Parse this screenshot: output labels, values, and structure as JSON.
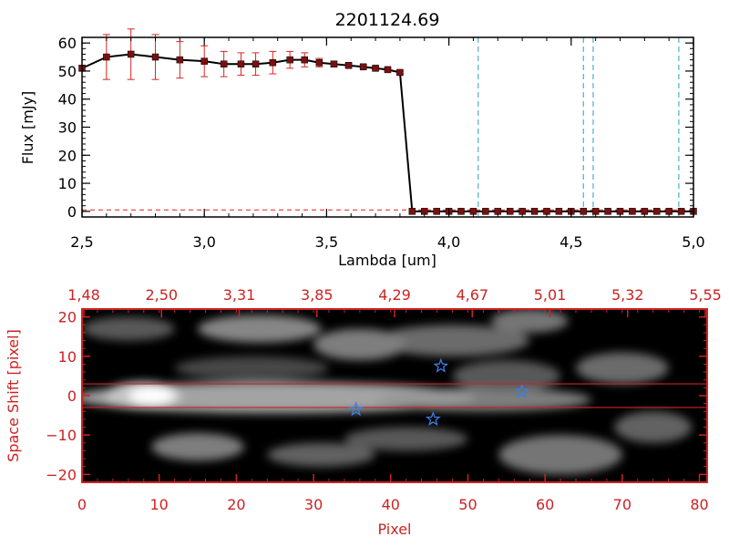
{
  "colors": {
    "axis_black": "#000000",
    "axis_red": "#cc2222",
    "error_bar": "#dd2222",
    "marker": "#7a1010",
    "dashed_line": "#2aa0b8",
    "star": "#3a7fe0",
    "background": "#ffffff"
  },
  "chart_data": [
    {
      "type": "line",
      "title": "2201124.69",
      "xlabel": "Lambda [um]",
      "ylabel": "Flux [mJy]",
      "xlim": [
        2.5,
        5.0
      ],
      "ylim": [
        -2,
        62
      ],
      "x_ticks": [
        "2.5",
        "3.0",
        "3.5",
        "4.0",
        "4.5",
        "5.0"
      ],
      "y_ticks": [
        "0",
        "10",
        "20",
        "30",
        "40",
        "50",
        "60"
      ],
      "series": [
        {
          "x": [
            2.5,
            2.6,
            2.7,
            2.8,
            2.9,
            3.0,
            3.08,
            3.15,
            3.21,
            3.28,
            3.35,
            3.41,
            3.47,
            3.53,
            3.59,
            3.65,
            3.7,
            3.75,
            3.8,
            3.85,
            3.9,
            3.95,
            4.0,
            4.05,
            4.1,
            4.15,
            4.2,
            4.25,
            4.3,
            4.35,
            4.4,
            4.45,
            4.5,
            4.55,
            4.6,
            4.65,
            4.7,
            4.75,
            4.8,
            4.85,
            4.9,
            4.95,
            5.0
          ],
          "y": [
            51,
            55,
            56,
            55,
            54,
            53.5,
            52.5,
            52.5,
            52.5,
            53,
            54,
            54,
            53,
            52.5,
            52,
            51.5,
            51,
            50.5,
            49.5,
            0,
            0,
            0,
            0,
            0,
            0,
            0,
            0,
            0,
            0,
            0,
            0,
            0,
            0,
            0,
            0,
            0,
            0,
            0,
            0,
            0,
            0,
            0,
            0
          ],
          "yerr": [
            0,
            8,
            9,
            8,
            6.5,
            5.5,
            4.5,
            4,
            4,
            4,
            3,
            2.5,
            1.5,
            1,
            0.8,
            0.6,
            0.5,
            0.5,
            0.5,
            0,
            0,
            0,
            0,
            0,
            0,
            0,
            0,
            0,
            0,
            0,
            0,
            0,
            0,
            0,
            0,
            0,
            0,
            0,
            0,
            0,
            0,
            0,
            0
          ]
        }
      ],
      "vlines": [
        4.12,
        4.55,
        4.59,
        4.94
      ],
      "hline_dashed": 0.5,
      "grid": false
    },
    {
      "type": "heatmap",
      "xlabel": "Pixel",
      "ylabel": "Space Shift [pixel]",
      "xlim": [
        0,
        81
      ],
      "ylim": [
        -22,
        22
      ],
      "x_ticks": [
        "0",
        "10",
        "20",
        "30",
        "40",
        "50",
        "60",
        "70",
        "80"
      ],
      "y_ticks": [
        "-20",
        "-10",
        "0",
        "10",
        "20"
      ],
      "top_ticks": [
        "1.48",
        "2.50",
        "3.31",
        "3.85",
        "4.29",
        "4.67",
        "5.01",
        "5.32",
        "5.55"
      ],
      "aperture_y": [
        -3,
        3
      ],
      "stars": [
        {
          "x": 46.5,
          "y": 7.5
        },
        {
          "x": 35.5,
          "y": -3.5
        },
        {
          "x": 45.5,
          "y": -6
        },
        {
          "x": 57,
          "y": 1
        }
      ],
      "blobs": [
        {
          "x": 8,
          "y": 0,
          "w": 5,
          "h": 3.5,
          "v": 1.0
        },
        {
          "x": 25,
          "y": -0.5,
          "w": 26,
          "h": 4,
          "v": 0.7
        },
        {
          "x": 52,
          "y": -1,
          "w": 14,
          "h": 3,
          "v": 0.5
        },
        {
          "x": 23,
          "y": 17,
          "w": 8,
          "h": 3.5,
          "v": 0.55
        },
        {
          "x": 36,
          "y": 13,
          "w": 6,
          "h": 4,
          "v": 0.5
        },
        {
          "x": 48,
          "y": 14,
          "w": 10,
          "h": 4,
          "v": 0.4
        },
        {
          "x": 58,
          "y": 19,
          "w": 5,
          "h": 3,
          "v": 0.45
        },
        {
          "x": 6,
          "y": 17,
          "w": 6,
          "h": 3,
          "v": 0.3
        },
        {
          "x": 15,
          "y": -13,
          "w": 6,
          "h": 3.5,
          "v": 0.5
        },
        {
          "x": 31,
          "y": -15,
          "w": 7,
          "h": 3,
          "v": 0.35
        },
        {
          "x": 62,
          "y": -15,
          "w": 8,
          "h": 5,
          "v": 0.45
        },
        {
          "x": 42,
          "y": -11,
          "w": 8,
          "h": 3,
          "v": 0.3
        },
        {
          "x": 70,
          "y": 7,
          "w": 6,
          "h": 4,
          "v": 0.4
        },
        {
          "x": 74,
          "y": -8,
          "w": 5,
          "h": 4,
          "v": 0.35
        },
        {
          "x": 55,
          "y": 5,
          "w": 7,
          "h": 4,
          "v": 0.3
        },
        {
          "x": 22,
          "y": 7,
          "w": 10,
          "h": 3,
          "v": 0.2
        }
      ]
    }
  ]
}
